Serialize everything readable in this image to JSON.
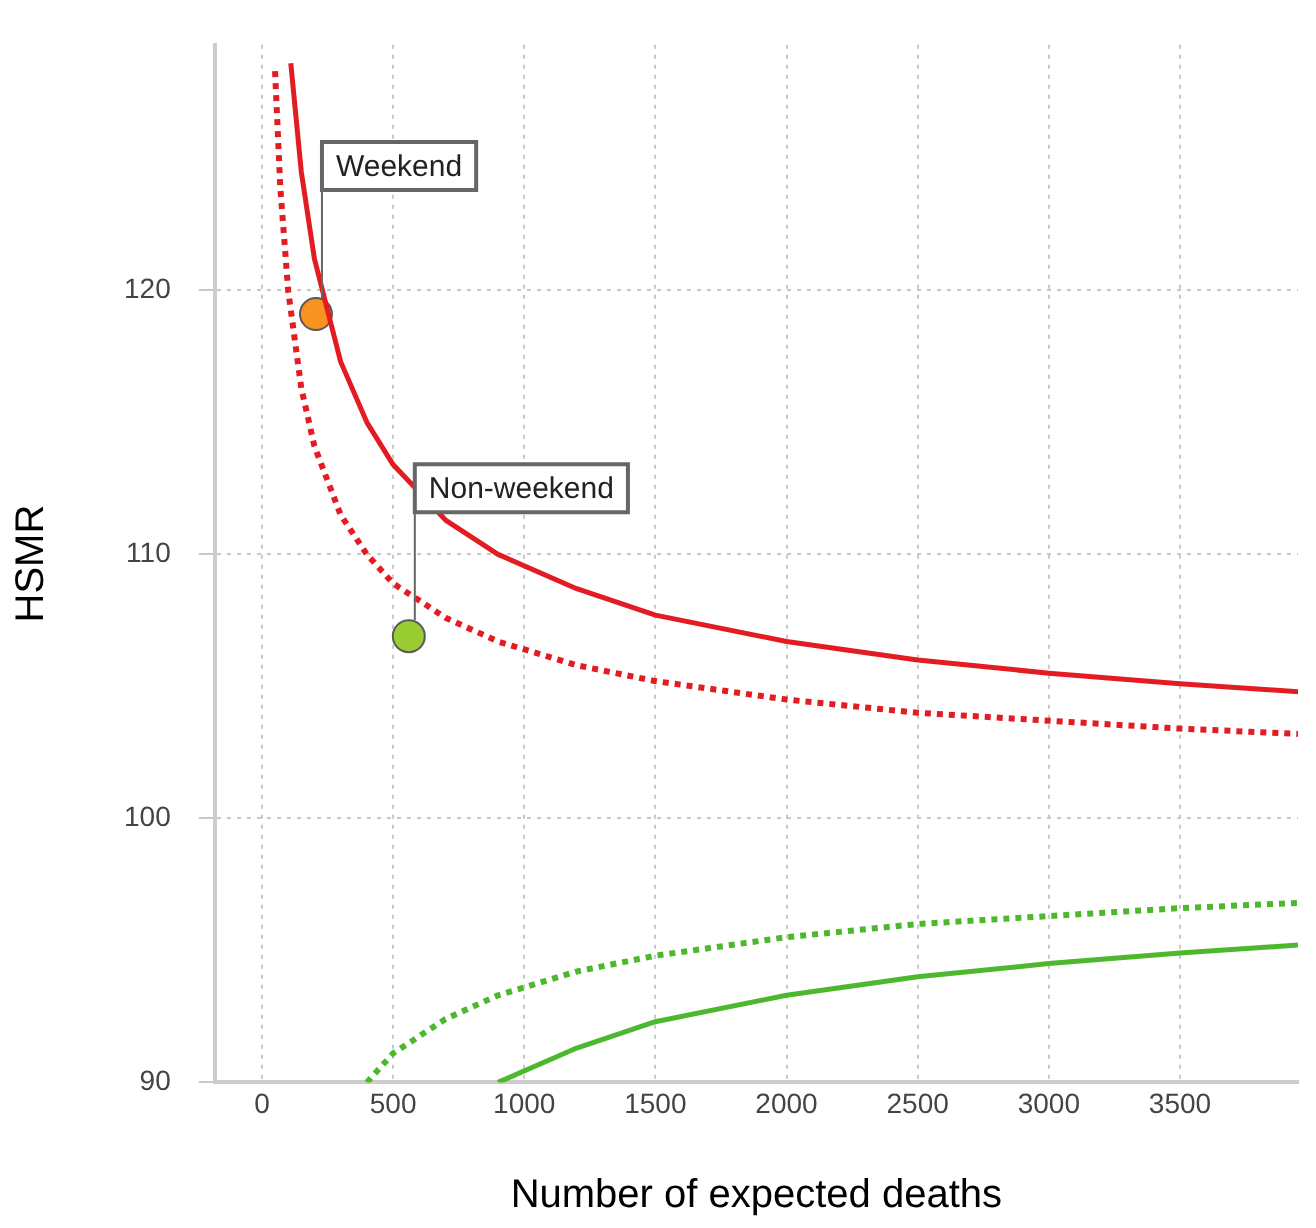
{
  "chart_data": {
    "type": "line",
    "xlabel": "Number of expected deaths",
    "ylabel": "HSMR",
    "xlim": [
      -180,
      3950
    ],
    "ylim": [
      90,
      129.3
    ],
    "xticks": [
      0,
      500,
      1000,
      1500,
      2000,
      2500,
      3000,
      3500
    ],
    "yticks": [
      90,
      100,
      110,
      120
    ],
    "grid": true,
    "legend": false,
    "series": [
      {
        "color": "#e31c23",
        "line_style": "solid",
        "marker": "none",
        "x": [
          110,
          150,
          200,
          300,
          400,
          500,
          700,
          900,
          1200,
          1500,
          2000,
          2500,
          3000,
          3500,
          3950
        ],
        "values": [
          128.6,
          124.5,
          121.2,
          117.3,
          115,
          113.4,
          111.3,
          110,
          108.7,
          107.7,
          106.7,
          106,
          105.5,
          105.1,
          104.8
        ]
      },
      {
        "color": "#e31c23",
        "line_style": "dotted",
        "marker": "none",
        "x": [
          50,
          70,
          100,
          150,
          200,
          300,
          400,
          500,
          700,
          900,
          1200,
          1500,
          2000,
          2500,
          3000,
          3500,
          3950
        ],
        "values": [
          128.3,
          123.9,
          120,
          116.3,
          114.1,
          111.5,
          110,
          108.9,
          107.6,
          106.7,
          105.8,
          105.2,
          104.5,
          104,
          103.7,
          103.4,
          103.2
        ]
      },
      {
        "color": "#4db82d",
        "line_style": "dotted",
        "marker": "none",
        "x": [
          400,
          500,
          700,
          900,
          1200,
          1500,
          2000,
          2500,
          3000,
          3500,
          3950
        ],
        "values": [
          90,
          91.1,
          92.4,
          93.3,
          94.2,
          94.8,
          95.5,
          96,
          96.3,
          96.6,
          96.8
        ]
      },
      {
        "color": "#4db82d",
        "line_style": "solid",
        "marker": "none",
        "x": [
          900,
          1200,
          1500,
          2000,
          2500,
          3000,
          3500,
          3950
        ],
        "values": [
          90,
          91.3,
          92.3,
          93.3,
          94,
          94.5,
          94.9,
          95.2
        ]
      },
      {
        "type": "scatter",
        "color": "#f7931e",
        "marker": "circle",
        "x": [
          206
        ],
        "values": [
          119.1
        ]
      },
      {
        "type": "scatter",
        "color": "#9acd32",
        "marker": "circle",
        "x": [
          560
        ],
        "values": [
          106.9
        ]
      }
    ],
    "annotations": [
      {
        "text": "Weekend",
        "x": 206,
        "y": 119.1
      },
      {
        "text": "Non-weekend",
        "x": 560,
        "y": 106.9
      }
    ]
  }
}
